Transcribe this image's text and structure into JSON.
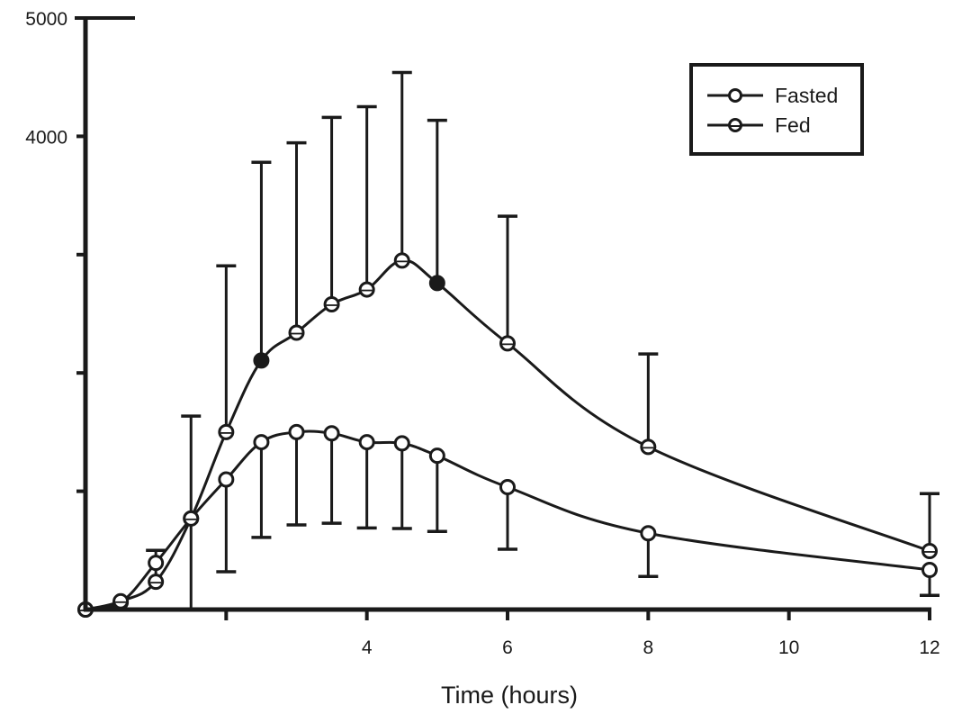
{
  "chart_data": {
    "type": "line",
    "title": "",
    "xlabel": "Time (hours)",
    "ylabel": "",
    "xlim": [
      0,
      12
    ],
    "ylim": [
      0,
      5000
    ],
    "x_ticks": [
      0,
      2,
      4,
      6,
      8,
      10,
      12
    ],
    "x_tick_labels": [
      "",
      "",
      "4",
      "6",
      "8",
      "10",
      "12"
    ],
    "y_ticks": [
      0,
      1000,
      2000,
      3000,
      4000,
      5000
    ],
    "y_tick_labels": [
      "",
      "",
      "",
      "",
      "4000",
      "5000"
    ],
    "grid": false,
    "legend": {
      "placement": "top-right",
      "entries": [
        "Fasted",
        "Fed"
      ]
    },
    "series": [
      {
        "name": "Fasted",
        "marker": "open-circle",
        "error_direction": "down",
        "points": [
          {
            "x": 0,
            "y": 0,
            "err": null,
            "filled": false
          },
          {
            "x": 0.5,
            "y": 60,
            "err": null,
            "filled": false
          },
          {
            "x": 1,
            "y": 395,
            "err": null,
            "filled": false
          },
          {
            "x": 1.5,
            "y": 770,
            "err": 770,
            "filled": false
          },
          {
            "x": 2,
            "y": 1100,
            "err": 780,
            "filled": false
          },
          {
            "x": 2.5,
            "y": 1415,
            "err": 805,
            "filled": false
          },
          {
            "x": 3,
            "y": 1500,
            "err": 785,
            "filled": false
          },
          {
            "x": 3.5,
            "y": 1490,
            "err": 760,
            "filled": false
          },
          {
            "x": 4,
            "y": 1415,
            "err": 725,
            "filled": false
          },
          {
            "x": 4.5,
            "y": 1405,
            "err": 720,
            "filled": false
          },
          {
            "x": 5,
            "y": 1300,
            "err": 640,
            "filled": false
          },
          {
            "x": 6,
            "y": 1035,
            "err": 525,
            "filled": false
          },
          {
            "x": 8,
            "y": 645,
            "err": 365,
            "filled": false
          },
          {
            "x": 12,
            "y": 335,
            "err": 215,
            "filled": false
          }
        ]
      },
      {
        "name": "Fed",
        "marker": "crossed-circle",
        "error_direction": "up",
        "points": [
          {
            "x": 0,
            "y": 0,
            "err": null,
            "filled": false
          },
          {
            "x": 0.5,
            "y": 70,
            "err": null,
            "filled": false
          },
          {
            "x": 1,
            "y": 235,
            "err": 265,
            "filled": false
          },
          {
            "x": 1.5,
            "y": 770,
            "err": 865,
            "filled": false
          },
          {
            "x": 2,
            "y": 1500,
            "err": 1405,
            "filled": false
          },
          {
            "x": 2.5,
            "y": 2105,
            "err": 1675,
            "filled": true
          },
          {
            "x": 3,
            "y": 2340,
            "err": 1605,
            "filled": false
          },
          {
            "x": 3.5,
            "y": 2580,
            "err": 1580,
            "filled": false
          },
          {
            "x": 4,
            "y": 2705,
            "err": 1545,
            "filled": false
          },
          {
            "x": 4.5,
            "y": 2950,
            "err": 1590,
            "filled": false
          },
          {
            "x": 5,
            "y": 2760,
            "err": 1375,
            "filled": true
          },
          {
            "x": 6,
            "y": 2250,
            "err": 1075,
            "filled": false
          },
          {
            "x": 8,
            "y": 1375,
            "err": 785,
            "filled": false
          },
          {
            "x": 12,
            "y": 495,
            "err": 485,
            "filled": false
          }
        ]
      }
    ]
  }
}
